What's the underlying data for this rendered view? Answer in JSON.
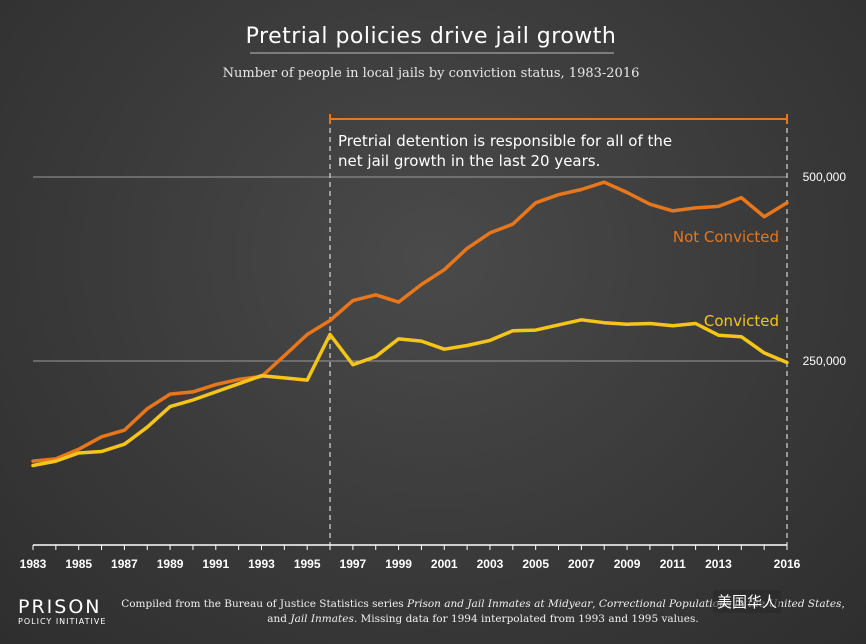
{
  "chart_data": {
    "type": "line",
    "title": "Pretrial policies drive jail growth",
    "subtitle": "Number of people in local jails by conviction status, 1983-2016",
    "x": [
      1983,
      1984,
      1985,
      1986,
      1987,
      1988,
      1989,
      1990,
      1991,
      1992,
      1993,
      1994,
      1995,
      1996,
      1997,
      1998,
      1999,
      2000,
      2001,
      2002,
      2003,
      2004,
      2005,
      2006,
      2007,
      2008,
      2009,
      2010,
      2011,
      2012,
      2013,
      2014,
      2015,
      2016
    ],
    "x_tick_labels": [
      "1983",
      "1985",
      "1987",
      "1989",
      "1991",
      "1993",
      "1995",
      "1997",
      "1999",
      "2001",
      "2003",
      "2005",
      "2007",
      "2009",
      "2011",
      "2013",
      "2016"
    ],
    "x_tick_values": [
      1983,
      1985,
      1987,
      1989,
      1991,
      1993,
      1995,
      1997,
      1999,
      2001,
      2003,
      2005,
      2007,
      2009,
      2011,
      2013,
      2016
    ],
    "y_gridlines": [
      250000,
      500000
    ],
    "y_tick_labels": [
      "250,000",
      "500,000"
    ],
    "ylim": [
      0,
      500000
    ],
    "series": [
      {
        "name": "Not Convicted",
        "color": "#e8761a",
        "values": [
          114000,
          117000,
          130000,
          147000,
          156000,
          185000,
          205000,
          208000,
          218000,
          225000,
          229000,
          257000,
          286000,
          305000,
          332000,
          340000,
          330000,
          354000,
          374000,
          403000,
          424000,
          436000,
          465000,
          476000,
          483000,
          493000,
          479000,
          463000,
          454000,
          458000,
          460000,
          472000,
          446000,
          465000
        ]
      },
      {
        "name": "Convicted",
        "color": "#f5c518",
        "values": [
          108000,
          114000,
          125000,
          127000,
          137000,
          160000,
          188000,
          197000,
          208000,
          219000,
          230000,
          227000,
          224000,
          286000,
          245000,
          256000,
          280000,
          277000,
          266000,
          271000,
          278000,
          291000,
          292000,
          299000,
          306000,
          302000,
          300000,
          301000,
          298000,
          301000,
          285000,
          283000,
          261000,
          248000
        ]
      }
    ],
    "annotation": {
      "from": 1996,
      "to": 2016,
      "line1": "Pretrial detention is responsible for all of the",
      "line2": "net jail growth in the last 20 years."
    }
  },
  "logo": {
    "main": "PRISON",
    "sub": "POLICY INITIATIVE"
  },
  "source": {
    "prefix": "Compiled from the Bureau of Justice Statistics series ",
    "italic1": "Prison and Jail Inmates at Midyear",
    "mid1": ", ",
    "italic2": "Correctional Populations in the United States",
    "mid2": ",",
    "line2_prefix": "and ",
    "italic3": "Jail Inmates",
    "line2_suffix": ". Missing data for 1994 interpolated from 1993 and 1995 values."
  },
  "watermark": "美国华人"
}
